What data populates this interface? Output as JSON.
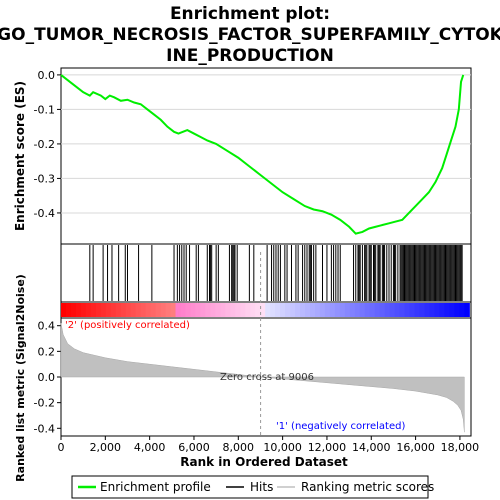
{
  "title_line1": "Enrichment plot:",
  "title_line2": "GO_TUMOR_NECROSIS_FACTOR_SUPERFAMILY_CYTOK",
  "title_line3": "INE_PRODUCTION",
  "es_ylabel": "Enrichment score (ES)",
  "metric_ylabel": "Ranked list metric (Signal2Noise)",
  "xlabel": "Rank in Ordered Dataset",
  "pos_label": "'2' (positively correlated)",
  "neg_label": "'1' (negatively correlated)",
  "zero_cross_label": "Zero cross at 9006",
  "legend": {
    "enrichment": "Enrichment profile",
    "hits": "Hits",
    "ranking": "Ranking metric scores"
  },
  "colors": {
    "enrichment_line": "#00ee00",
    "hits": "#000000",
    "metric_fill": "#c0c0c0",
    "pos_label": "#ff0000",
    "neg_label": "#0000ff",
    "bar_pos": "#ff0000",
    "bar_neg": "#0000ff"
  },
  "chart_data": {
    "type": "line",
    "x_range": [
      0,
      18500
    ],
    "es_ylim": [
      -0.49,
      0.02
    ],
    "metric_ylim": [
      -0.46,
      0.46
    ],
    "x_ticks": [
      0,
      2000,
      4000,
      6000,
      8000,
      10000,
      12000,
      14000,
      16000,
      18000
    ],
    "x_tick_labels": [
      "0",
      "2,000",
      "4,000",
      "6,000",
      "8,000",
      "10,000",
      "12,000",
      "14,000",
      "16,000",
      "18,000"
    ],
    "es_ticks": [
      0.0,
      -0.1,
      -0.2,
      -0.3,
      -0.4
    ],
    "es_tick_labels": [
      "0.0",
      "-0.1",
      "-0.2",
      "-0.3",
      "-0.4"
    ],
    "metric_ticks": [
      0.4,
      0.2,
      0.0,
      -0.2,
      -0.4
    ],
    "metric_tick_labels": [
      "0.4",
      "0.2",
      "0.0",
      "-0.2",
      "-0.4"
    ],
    "zero_cross": 9006,
    "n_genes": 18200,
    "enrichment_profile": {
      "x": [
        0,
        500,
        1000,
        1300,
        1450,
        1800,
        2000,
        2200,
        2400,
        2700,
        3000,
        3300,
        3600,
        3900,
        4200,
        4500,
        4800,
        5100,
        5300,
        5500,
        5700,
        6000,
        6300,
        6600,
        7000,
        7500,
        8000,
        8500,
        9000,
        9500,
        10000,
        10500,
        11000,
        11400,
        11800,
        12200,
        12600,
        13000,
        13300,
        13600,
        13900,
        14200,
        14500,
        14800,
        15100,
        15400,
        15700,
        16000,
        16300,
        16600,
        16900,
        17200,
        17400,
        17600,
        17800,
        17950,
        18050,
        18150
      ],
      "y": [
        0.0,
        -0.025,
        -0.05,
        -0.06,
        -0.05,
        -0.06,
        -0.07,
        -0.06,
        -0.065,
        -0.075,
        -0.072,
        -0.08,
        -0.085,
        -0.1,
        -0.115,
        -0.13,
        -0.15,
        -0.165,
        -0.17,
        -0.165,
        -0.16,
        -0.17,
        -0.18,
        -0.19,
        -0.2,
        -0.22,
        -0.24,
        -0.265,
        -0.29,
        -0.315,
        -0.34,
        -0.36,
        -0.38,
        -0.39,
        -0.395,
        -0.405,
        -0.42,
        -0.44,
        -0.46,
        -0.455,
        -0.445,
        -0.44,
        -0.435,
        -0.43,
        -0.425,
        -0.42,
        -0.4,
        -0.38,
        -0.36,
        -0.34,
        -0.31,
        -0.27,
        -0.23,
        -0.19,
        -0.15,
        -0.1,
        -0.02,
        0.0
      ]
    },
    "hits": [
      1300,
      1450,
      1900,
      2100,
      2300,
      2600,
      2900,
      3000,
      3500,
      4100,
      5100,
      5250,
      5350,
      5450,
      5550,
      5650,
      5800,
      6100,
      6200,
      6600,
      6700,
      6750,
      6800,
      7000,
      7100,
      7600,
      7700,
      7750,
      7800,
      7850,
      7950,
      8500,
      8700,
      9300,
      9500,
      9600,
      9700,
      9800,
      9900,
      10100,
      10200,
      10400,
      10600,
      10700,
      10900,
      11000,
      11100,
      11200,
      11250,
      11300,
      11400,
      11500,
      11800,
      12000,
      12200,
      12300,
      12400,
      12500,
      12600,
      13200,
      13300,
      13400,
      13450,
      13500,
      13600,
      13700,
      13750,
      13800,
      13900,
      13950,
      14000,
      14100,
      14150,
      14200,
      14300,
      14350,
      14400,
      14500,
      14550,
      14600,
      14700,
      14800,
      14900,
      15000,
      15050,
      15100,
      15200,
      15300,
      15350,
      15400,
      15450,
      15500,
      15550,
      15600,
      15650,
      15700,
      15750,
      15800,
      15850,
      15900,
      15950,
      16000,
      16050,
      16100,
      16150,
      16200,
      16250,
      16300,
      16350,
      16400,
      16450,
      16500,
      16550,
      16600,
      16650,
      16700,
      16750,
      16800,
      16850,
      16900,
      16950,
      17000,
      17050,
      17100,
      17150,
      17200,
      17250,
      17300,
      17350,
      17400,
      17450,
      17500,
      17550,
      17600,
      17650,
      17700,
      17750,
      17800,
      17850,
      17900,
      17950,
      18000,
      18050,
      18100
    ],
    "metric_curve": {
      "x": [
        0,
        100,
        300,
        600,
        1000,
        1500,
        2000,
        3000,
        4000,
        5000,
        6000,
        7000,
        8000,
        9006,
        10000,
        11000,
        12000,
        13000,
        14000,
        15000,
        16000,
        16500,
        17000,
        17400,
        17700,
        17900,
        18050,
        18150,
        18200
      ],
      "y": [
        0.42,
        0.33,
        0.26,
        0.22,
        0.19,
        0.17,
        0.15,
        0.12,
        0.1,
        0.08,
        0.06,
        0.04,
        0.02,
        0.0,
        -0.015,
        -0.03,
        -0.045,
        -0.06,
        -0.075,
        -0.09,
        -0.11,
        -0.125,
        -0.14,
        -0.16,
        -0.19,
        -0.22,
        -0.26,
        -0.33,
        -0.43
      ]
    }
  }
}
